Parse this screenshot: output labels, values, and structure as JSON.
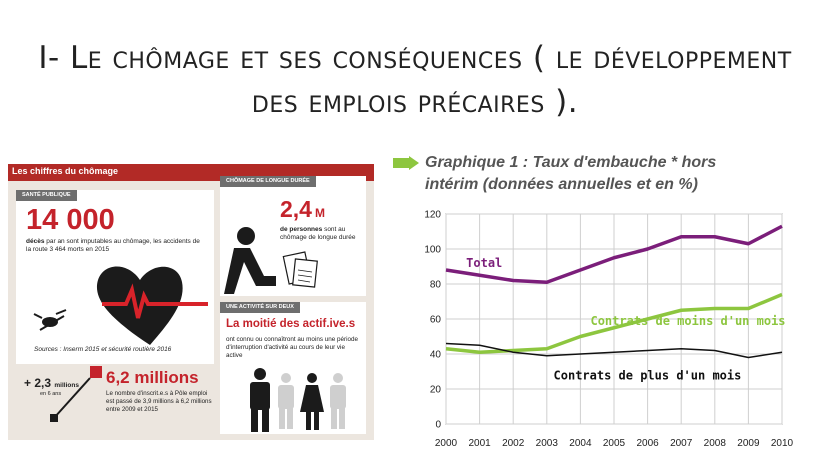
{
  "title": "I- Le chômage et ses conséquences ( le développement des emplois précaires ).",
  "infographic": {
    "header": "Les chiffres du chômage",
    "sante": {
      "tag": "SANTÉ PUBLIQUE",
      "number": "14 000",
      "text_bold": "décès",
      "text": " par an sont imputables au chômage, les accidents de la route 3 464 morts en 2015",
      "sources": "Sources : Inserm 2015 et sécurité routière 2016"
    },
    "longue_duree": {
      "tag": "CHÔMAGE DE LONGUE DURÉE",
      "number": "2,4",
      "unit": "M",
      "text_bold": "de personnes",
      "text": " sont au chômage de longue durée"
    },
    "actifs": {
      "tag": "UNE ACTIVITÉ SUR DEUX",
      "heading": "La moitié des actif.ive.s",
      "text": "ont connu ou connaîtront au moins une période d'interruption d'activité au cours de leur vie active"
    },
    "inscrits": {
      "small_number": "+ 2,3",
      "small_unit": "millions",
      "small_sub": "en 6 ans",
      "number": "6,2 millions",
      "text": "Le nombre d'inscrit.e.s à Pôle emploi est passé de 3,9 millions à 6,2 millions entre 2009 et 2015"
    }
  },
  "chart_data": {
    "type": "line",
    "title": "Graphique 1 : Taux d'embauche * hors intérim (données annuelles et en %)",
    "title_line1": "Graphique 1 : Taux d'embauche * hors",
    "title_line2": "intérim (données annuelles et en %)",
    "x": [
      2000,
      2001,
      2002,
      2003,
      2004,
      2005,
      2006,
      2007,
      2008,
      2009,
      2010
    ],
    "ylim": [
      0,
      120
    ],
    "yticks": [
      0,
      20,
      40,
      60,
      80,
      100,
      120
    ],
    "grid": true,
    "series": [
      {
        "name": "Total",
        "color": "#7b1e7a",
        "values": [
          88,
          85,
          82,
          81,
          88,
          95,
          100,
          107,
          107,
          103,
          113
        ]
      },
      {
        "name": "Contrats de moins d'un mois",
        "color": "#8dc63f",
        "values": [
          43,
          41,
          42,
          43,
          50,
          55,
          60,
          65,
          66,
          66,
          74
        ]
      },
      {
        "name": "Contrats de plus d'un mois",
        "color": "#111111",
        "values": [
          46,
          45,
          41,
          39,
          40,
          41,
          42,
          43,
          42,
          38,
          41
        ]
      }
    ]
  }
}
